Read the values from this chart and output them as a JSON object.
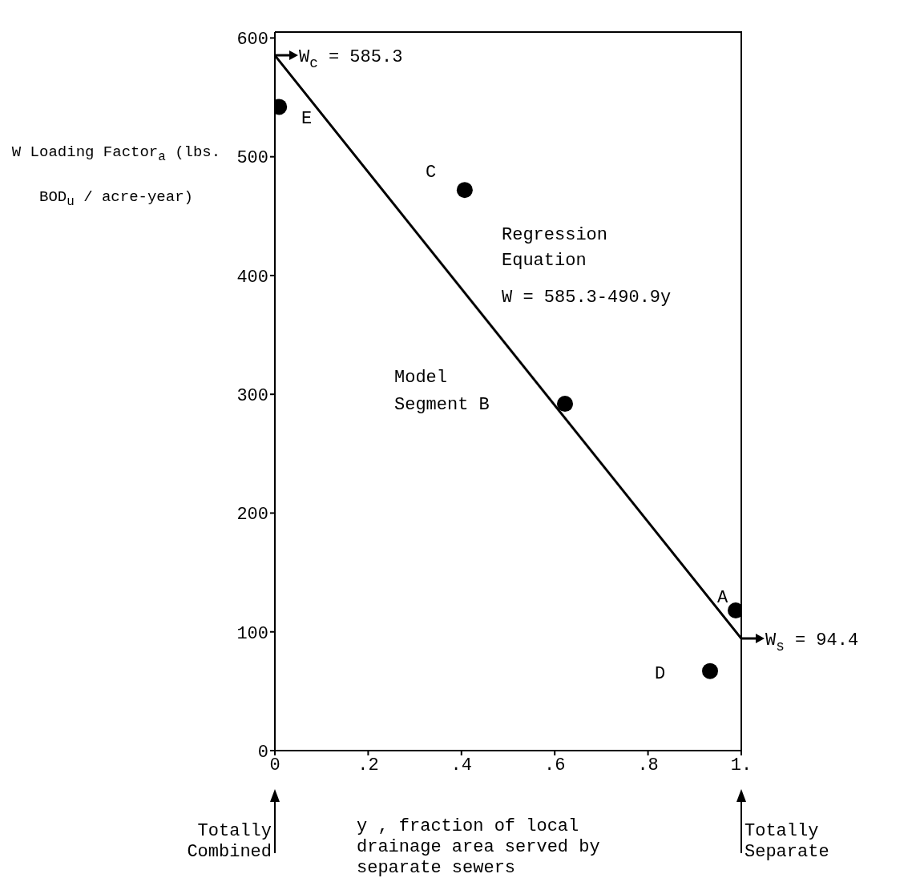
{
  "chart_data": {
    "type": "scatter",
    "xlabel": "y , fraction of local drainage area served by separate sewers",
    "ylabel": "W Loading Factor$_{a}$ (lbs. BOD$_{u}$ / acre-year)",
    "xlim": [
      0,
      1
    ],
    "ylim": [
      0,
      605
    ],
    "xticks": [
      {
        "value": 0,
        "label": "0"
      },
      {
        "value": 0.2,
        "label": ".2"
      },
      {
        "value": 0.4,
        "label": ".4"
      },
      {
        "value": 0.6,
        "label": ".6"
      },
      {
        "value": 0.8,
        "label": ".8"
      },
      {
        "value": 1,
        "label": "1."
      }
    ],
    "yticks": [
      0,
      100,
      200,
      300,
      400,
      500,
      600
    ],
    "grid": false,
    "marker": "circle",
    "series": [
      {
        "color": "#000000",
        "x": [
          0.009,
          0.407,
          0.622,
          0.988,
          0.933
        ],
        "values": [
          542,
          472,
          292,
          118,
          67
        ]
      },
      {
        "type": "line",
        "color": "#000000",
        "x": [
          0,
          1
        ],
        "values": [
          585.3,
          94.4
        ],
        "marker": "none",
        "line_style": "solid"
      }
    ],
    "annotations": [
      {
        "text": "W$_{c}$ = 585.3",
        "x": 0,
        "y": 585.3
      },
      {
        "text": "W$_{s}$ = 94.4",
        "x": 1,
        "y": 94.4
      },
      "E",
      "C",
      "Regression",
      "Equation",
      "W = 585.3-490.9y",
      "Model",
      "Segment B",
      "A",
      "D",
      "Totally Combined",
      "Totally Separate"
    ]
  }
}
